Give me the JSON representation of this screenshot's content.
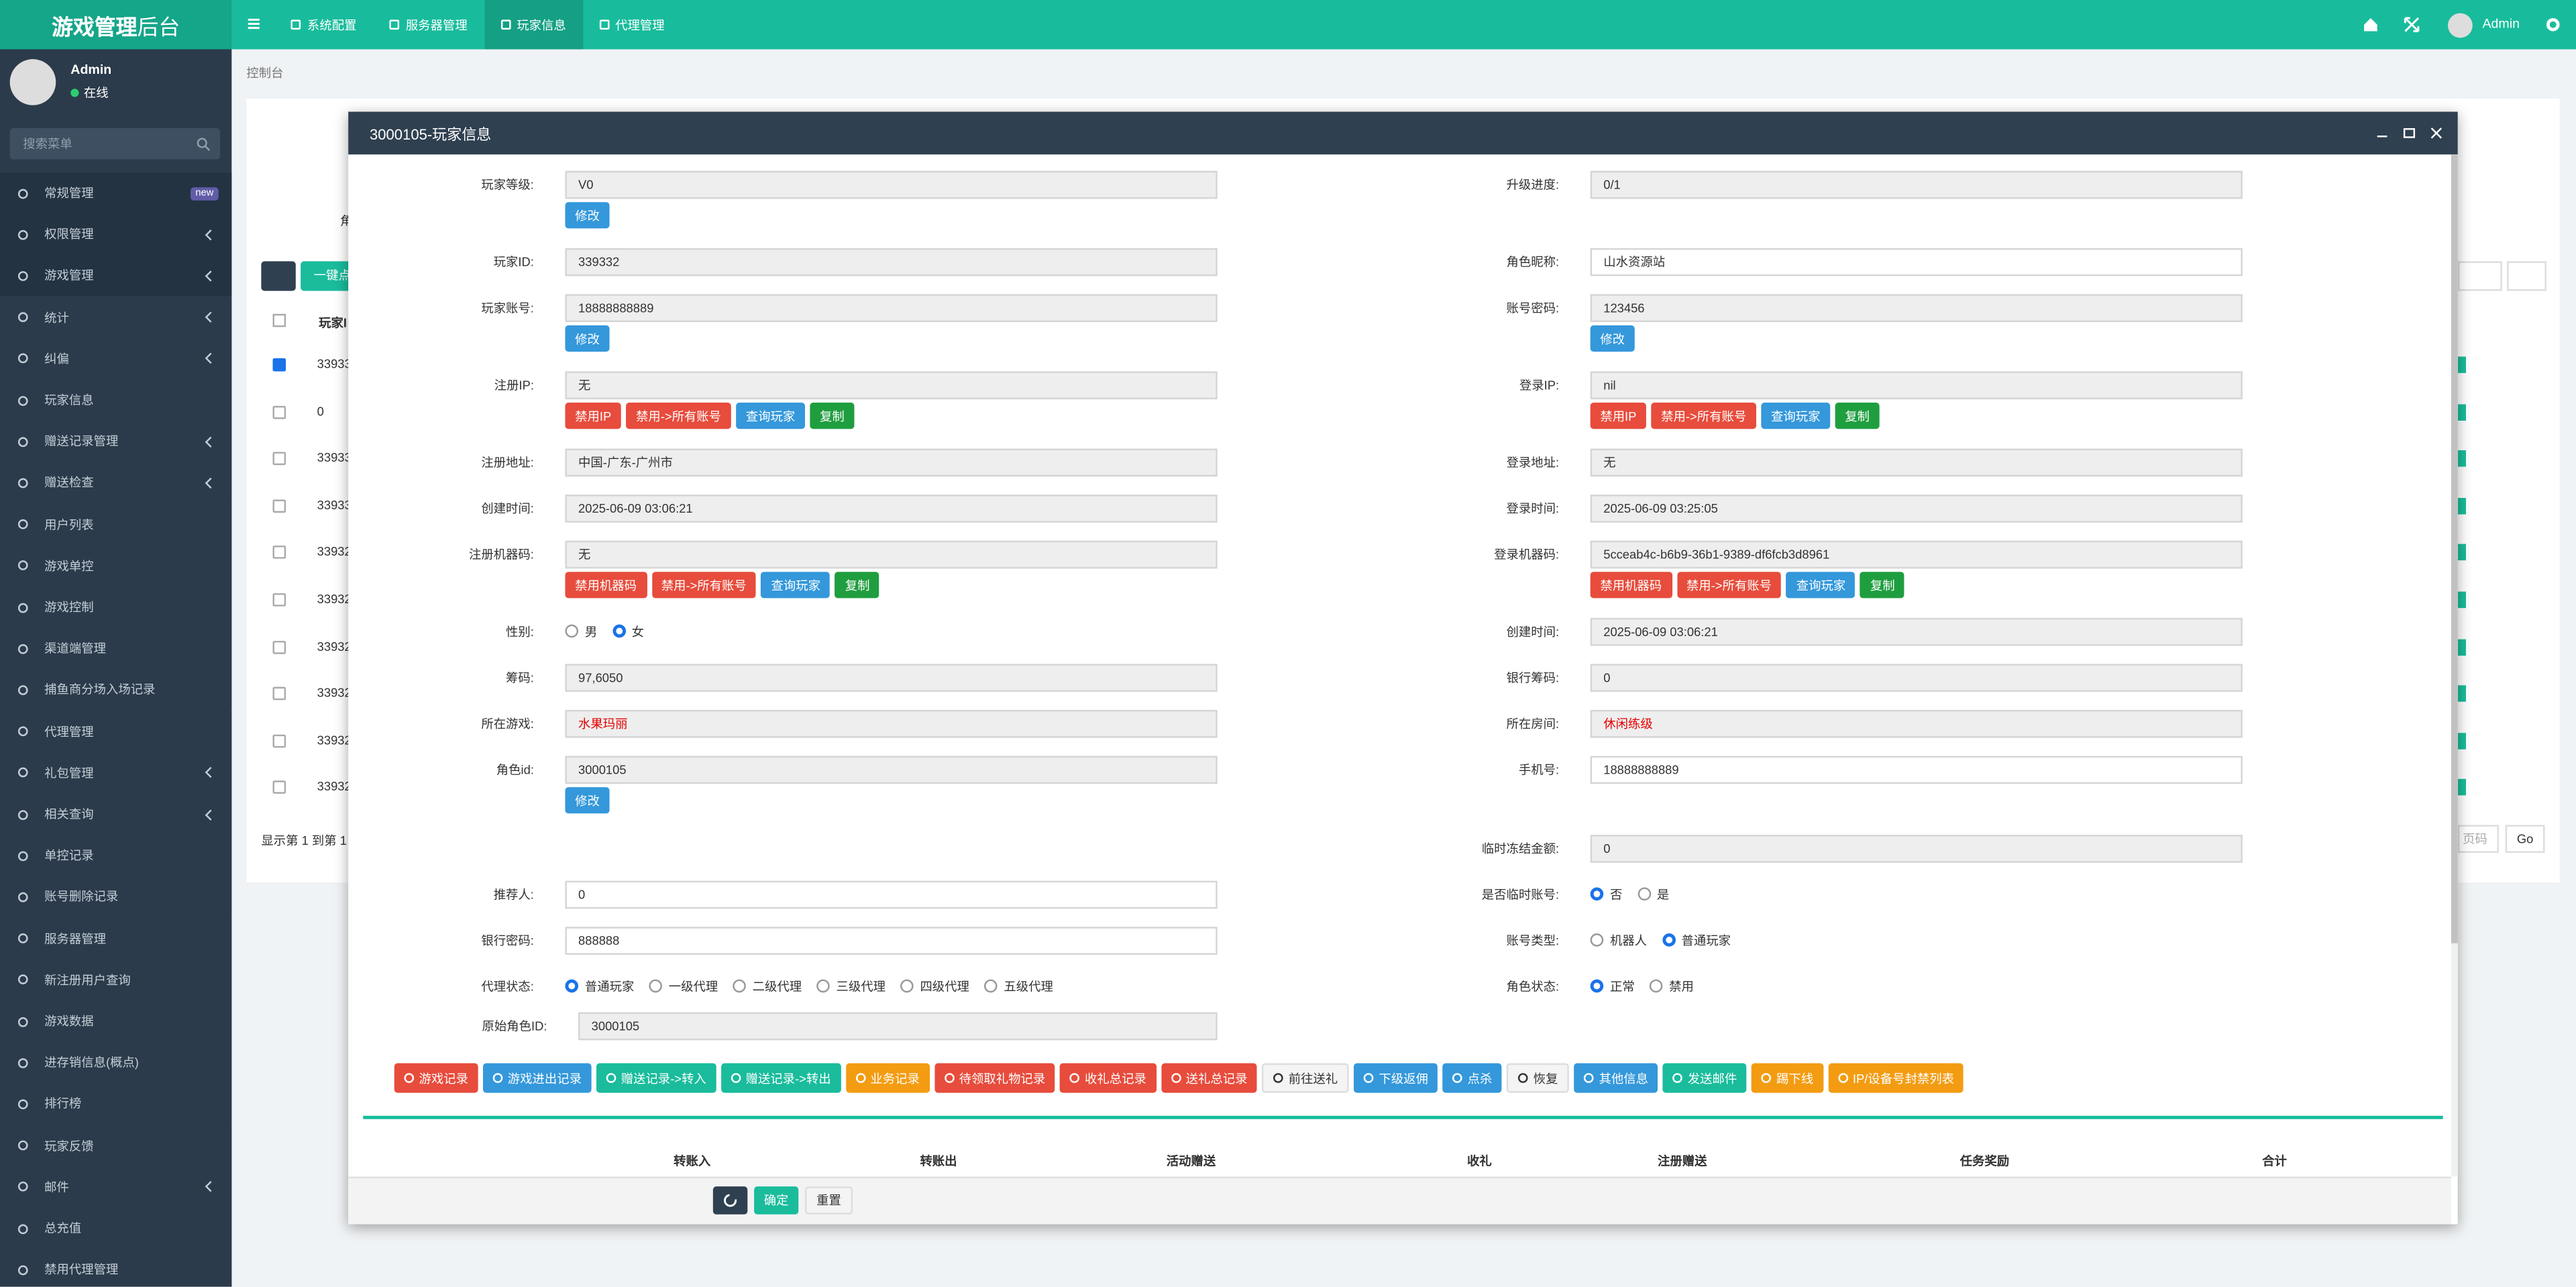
{
  "header": {
    "logo": [
      "游戏管理",
      "后台"
    ],
    "nav": [
      "系统配置",
      "服务器管理",
      "玩家信息",
      "代理管理"
    ],
    "active_nav": 2,
    "user": "Admin"
  },
  "sidebar": {
    "user": "Admin",
    "status": "在线",
    "search_placeholder": "搜索菜单",
    "menu": [
      {
        "label": "常规管理",
        "badge": "new"
      },
      {
        "label": "权限管理",
        "submenu": true
      },
      {
        "label": "游戏管理",
        "submenu": true
      },
      {
        "label": "统计",
        "submenu": true
      },
      {
        "label": "纠偏",
        "submenu": true
      },
      {
        "label": "玩家信息"
      },
      {
        "label": "赠送记录管理",
        "submenu": true
      },
      {
        "label": "赠送检查",
        "submenu": true
      },
      {
        "label": "用户列表"
      },
      {
        "label": "游戏单控"
      },
      {
        "label": "游戏控制"
      },
      {
        "label": "渠道端管理"
      },
      {
        "label": "捕鱼商分场入场记录"
      },
      {
        "label": "代理管理"
      },
      {
        "label": "礼包管理",
        "submenu": true
      },
      {
        "label": "相关查询",
        "submenu": true
      },
      {
        "label": "单控记录"
      },
      {
        "label": "账号删除记录"
      },
      {
        "label": "服务器管理"
      },
      {
        "label": "新注册用户查询"
      },
      {
        "label": "游戏数据"
      },
      {
        "label": "进存销信息(概点)"
      },
      {
        "label": "排行榜"
      },
      {
        "label": "玩家反馈"
      },
      {
        "label": "邮件",
        "submenu": true
      },
      {
        "label": "总充值"
      },
      {
        "label": "禁用代理管理"
      }
    ]
  },
  "breadcrumb": "控制台",
  "background_table": {
    "toolbar_button": "一键点",
    "side_label": "角",
    "header": "玩家I",
    "rows": [
      "33933",
      "0",
      "33933",
      "33933",
      "33932",
      "33932",
      "33932",
      "33932",
      "33932",
      "33932"
    ],
    "checked_row": 0,
    "footer": "显示第 1 到第 1",
    "page_placeholder": "页码",
    "go": "Go"
  },
  "modal": {
    "title": "3000105-玩家信息",
    "rows": [
      {
        "left": {
          "label": "玩家等级:",
          "value": "V0",
          "buttons": [
            {
              "text": "修改",
              "color": "#3498db"
            }
          ]
        },
        "right": {
          "label": "升级进度:",
          "value": "0/1"
        }
      },
      {
        "left": {
          "label": "玩家ID:",
          "value": "339332"
        },
        "right": {
          "label": "角色昵称:",
          "value": "山水资源站",
          "editable": true
        }
      },
      {
        "left": {
          "label": "玩家账号:",
          "value": "18888888889",
          "buttons": [
            {
              "text": "修改",
              "color": "#3498db"
            }
          ]
        },
        "right": {
          "label": "账号密码:",
          "value": "123456",
          "buttons": [
            {
              "text": "修改",
              "color": "#3498db"
            }
          ]
        }
      },
      {
        "left": {
          "label": "注册IP:",
          "value": "无",
          "buttons": [
            {
              "text": "禁用IP",
              "color": "#e74c3c"
            },
            {
              "text": "禁用->所有账号",
              "color": "#e74c3c"
            },
            {
              "text": "查询玩家",
              "color": "#3498db"
            },
            {
              "text": "复制",
              "color": "#1f9e3f"
            }
          ]
        },
        "right": {
          "label": "登录IP:",
          "value": "nil",
          "buttons": [
            {
              "text": "禁用IP",
              "color": "#e74c3c"
            },
            {
              "text": "禁用->所有账号",
              "color": "#e74c3c"
            },
            {
              "text": "查询玩家",
              "color": "#3498db"
            },
            {
              "text": "复制",
              "color": "#1f9e3f"
            }
          ]
        }
      },
      {
        "left": {
          "label": "注册地址:",
          "value": "中国-广东-广州市"
        },
        "right": {
          "label": "登录地址:",
          "value": "无"
        }
      },
      {
        "left": {
          "label": "创建时间:",
          "value": "2025-06-09 03:06:21"
        },
        "right": {
          "label": "登录时间:",
          "value": "2025-06-09 03:25:05"
        }
      },
      {
        "left": {
          "label": "注册机器码:",
          "value": "无",
          "buttons": [
            {
              "text": "禁用机器码",
              "color": "#e74c3c"
            },
            {
              "text": "禁用->所有账号",
              "color": "#e74c3c"
            },
            {
              "text": "查询玩家",
              "color": "#3498db"
            },
            {
              "text": "复制",
              "color": "#1f9e3f"
            }
          ]
        },
        "right": {
          "label": "登录机器码:",
          "value": "5cceab4c-b6b9-36b1-9389-df6fcb3d8961",
          "buttons": [
            {
              "text": "禁用机器码",
              "color": "#e74c3c"
            },
            {
              "text": "禁用->所有账号",
              "color": "#e74c3c"
            },
            {
              "text": "查询玩家",
              "color": "#3498db"
            },
            {
              "text": "复制",
              "color": "#1f9e3f"
            }
          ]
        }
      },
      {
        "left": {
          "label": "性别:",
          "options": [
            "男",
            "女"
          ],
          "checked": 1
        },
        "right": {
          "label": "创建时间:",
          "value": "2025-06-09 03:06:21"
        }
      },
      {
        "left": {
          "label": "筹码:",
          "value": "97,6050"
        },
        "right": {
          "label": "银行筹码:",
          "value": "0"
        }
      },
      {
        "left": {
          "label": "所在游戏:",
          "value": "水果玛丽",
          "color": "#e60000"
        },
        "right": {
          "label": "所在房间:",
          "value": "休闲练级",
          "color": "#e60000"
        }
      },
      {
        "left": {
          "label": "角色id:",
          "value": "3000105",
          "buttons": [
            {
              "text": "修改",
              "color": "#3498db"
            }
          ]
        },
        "right": {
          "label": "手机号:",
          "value": "18888888889",
          "editable": true
        }
      },
      {
        "right": {
          "label": "临时冻结金额:",
          "value": "0"
        }
      },
      {
        "left": {
          "label": "推荐人:",
          "value": "0",
          "editable": true
        },
        "right": {
          "label": "是否临时账号:",
          "options": [
            "否",
            "是"
          ],
          "checked": 0
        }
      },
      {
        "left": {
          "label": "银行密码:",
          "value": "888888",
          "editable": true
        },
        "right": {
          "label": "账号类型:",
          "options": [
            "机器人",
            "普通玩家"
          ],
          "checked": 1
        }
      },
      {
        "left": {
          "label": "代理状态:",
          "options": [
            "普通玩家",
            "一级代理",
            "二级代理",
            "三级代理",
            "四级代理",
            "五级代理"
          ],
          "checked": 0
        },
        "right": {
          "label": "角色状态:",
          "options": [
            "正常",
            "禁用"
          ],
          "checked": 0
        }
      },
      {
        "left": {
          "label": "原始角色ID:",
          "value": "3000105"
        }
      }
    ],
    "actions": [
      {
        "text": "游戏记录",
        "color": "#e74c3c"
      },
      {
        "text": "游戏进出记录",
        "color": "#3498db"
      },
      {
        "text": "赠送记录->转入",
        "color": "#1abc9c"
      },
      {
        "text": "赠送记录->转出",
        "color": "#1abc9c"
      },
      {
        "text": "业务记录",
        "color": "#f39c12"
      },
      {
        "text": "待领取礼物记录",
        "color": "#e74c3c"
      },
      {
        "text": "收礼总记录",
        "color": "#e74c3c"
      },
      {
        "text": "送礼总记录",
        "color": "#e74c3c"
      },
      {
        "text": "前往送礼",
        "color": "#f4f4f4"
      },
      {
        "text": "下级返佣",
        "color": "#3498db"
      },
      {
        "text": "点杀",
        "color": "#3498db"
      },
      {
        "text": "恢复",
        "color": "#f4f4f4"
      },
      {
        "text": "其他信息",
        "color": "#3498db"
      },
      {
        "text": "发送邮件",
        "color": "#1abc9c"
      },
      {
        "text": "踢下线",
        "color": "#f39c12"
      },
      {
        "text": "IP/设备号封禁列表",
        "color": "#f39c12"
      }
    ],
    "table_headers": [
      "转账入",
      "转账出",
      "活动赠送",
      "收礼",
      "注册赠送",
      "任务奖励",
      "合计"
    ],
    "footer_buttons": [
      {
        "text": "确定",
        "color": "#1abc9c"
      },
      {
        "text": "重置",
        "color": "#f4f4f4"
      }
    ]
  }
}
